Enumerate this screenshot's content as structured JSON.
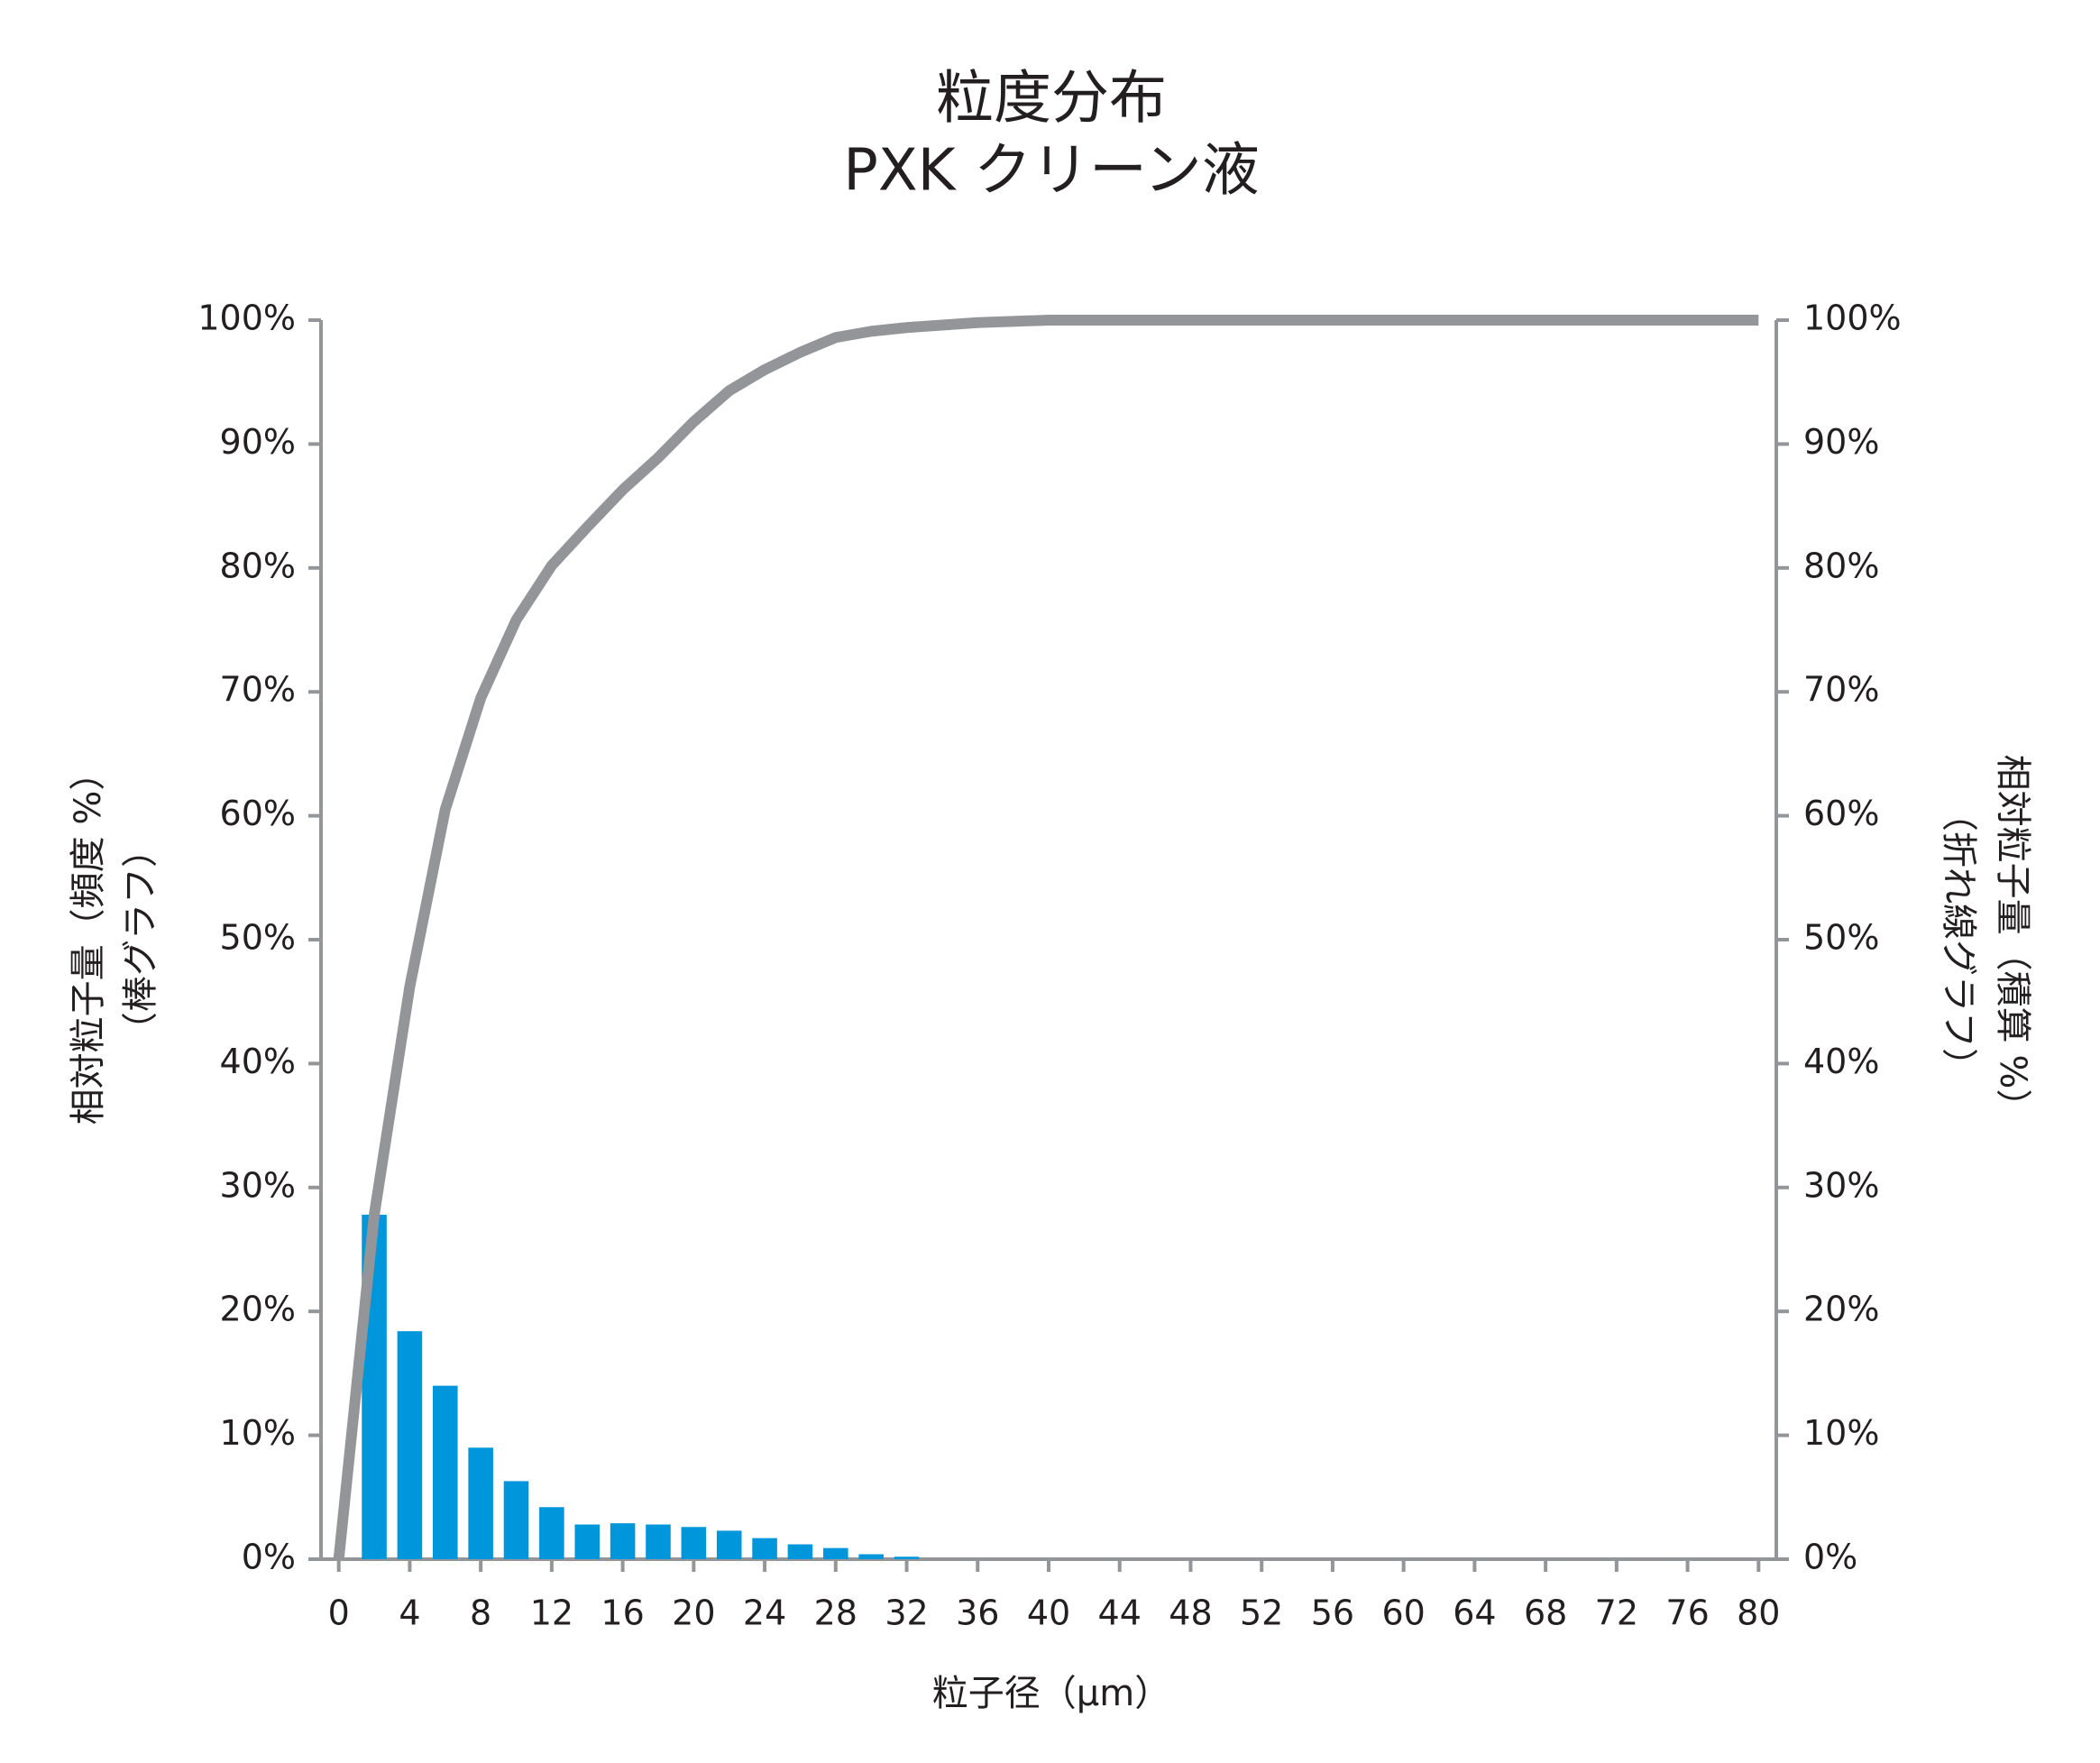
{
  "chart_data": {
    "type": "bar-line",
    "title": "粒度分布",
    "subtitle": "PXK クリーン液",
    "xlabel": "粒子径（μm）",
    "ylabel": [
      "相対粒子量（頻度 %）",
      "（棒グラフ）"
    ],
    "y2label": [
      "相対粒子量（積算 %）",
      "（折れ線グラフ）"
    ],
    "xlim": [
      -1,
      81
    ],
    "xticks": [
      0,
      4,
      8,
      12,
      16,
      20,
      24,
      28,
      32,
      36,
      40,
      44,
      48,
      52,
      56,
      60,
      64,
      68,
      72,
      76,
      80
    ],
    "ylim": [
      0,
      100
    ],
    "yticks": [
      {
        "value": 0,
        "label": "0%"
      },
      {
        "value": 10,
        "label": "10%"
      },
      {
        "value": 20,
        "label": "20%"
      },
      {
        "value": 30,
        "label": "30%"
      },
      {
        "value": 40,
        "label": "40%"
      },
      {
        "value": 50,
        "label": "50%"
      },
      {
        "value": 60,
        "label": "60%"
      },
      {
        "value": 70,
        "label": "70%"
      },
      {
        "value": 80,
        "label": "80%"
      },
      {
        "value": 90,
        "label": "90%"
      },
      {
        "value": 100,
        "label": "100%"
      }
    ],
    "y2lim": [
      0,
      100
    ],
    "y2ticks": [
      {
        "value": 0,
        "label": "0%"
      },
      {
        "value": 10,
        "label": "10%"
      },
      {
        "value": 20,
        "label": "20%"
      },
      {
        "value": 30,
        "label": "30%"
      },
      {
        "value": 40,
        "label": "40%"
      },
      {
        "value": 50,
        "label": "50%"
      },
      {
        "value": 60,
        "label": "60%"
      },
      {
        "value": 70,
        "label": "70%"
      },
      {
        "value": 80,
        "label": "80%"
      },
      {
        "value": 90,
        "label": "90%"
      },
      {
        "value": 100,
        "label": "100%"
      }
    ],
    "series": [
      {
        "kind": "bar",
        "color": "#0096db",
        "x": [
          2,
          4,
          6,
          8,
          10,
          12,
          14,
          16,
          18,
          20,
          22,
          24,
          26,
          28,
          30,
          32
        ],
        "values": [
          27.8,
          18.4,
          14,
          9,
          6.3,
          4.2,
          2.8,
          2.9,
          2.8,
          2.6,
          2.3,
          1.7,
          1.2,
          0.9,
          0.4,
          0.2
        ]
      },
      {
        "kind": "line",
        "axis": "y2",
        "color": "#939598",
        "x": [
          0,
          2,
          4,
          6,
          8,
          10,
          12,
          14,
          16,
          18,
          20,
          22,
          24,
          26,
          28,
          30,
          32,
          34,
          36,
          38,
          40,
          44,
          48,
          52,
          56,
          60,
          64,
          68,
          72,
          76,
          80
        ],
        "values": [
          0,
          27.8,
          46.2,
          60.5,
          69.5,
          75.8,
          80.2,
          83.3,
          86.3,
          88.9,
          91.8,
          94.3,
          96,
          97.4,
          98.6,
          99.1,
          99.4,
          99.6,
          99.8,
          99.9,
          100,
          100,
          100,
          100,
          100,
          100,
          100,
          100,
          100,
          100,
          100
        ]
      }
    ]
  }
}
